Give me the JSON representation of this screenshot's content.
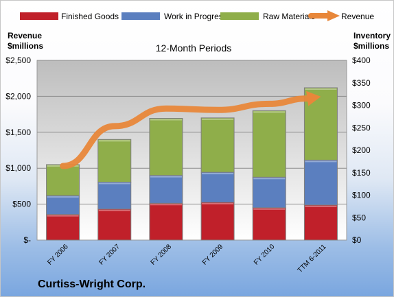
{
  "chart_data": {
    "type": "bar",
    "stacked": true,
    "subtitle": "12-Month Periods",
    "company": "Curtiss-Wright Corp.",
    "categories": [
      "FY 2006",
      "FY 2007",
      "FY 2008",
      "FY 2009",
      "FY 2010",
      "TTM 6-2011"
    ],
    "left_axis": {
      "label_line1": "Revenue",
      "label_line2": "$millions",
      "ylim": [
        0,
        2500
      ],
      "ticks": [
        0,
        500,
        1000,
        1500,
        2000,
        2500
      ],
      "tick_labels": [
        "$-",
        "$500",
        "$1,000",
        "$1,500",
        "$2,000",
        "$2,500"
      ]
    },
    "right_axis": {
      "label_line1": "Inventory",
      "label_line2": "$millions",
      "ylim": [
        0,
        400
      ],
      "ticks": [
        0,
        50,
        100,
        150,
        200,
        250,
        300,
        350,
        400
      ],
      "tick_labels": [
        "$0",
        "$50",
        "$100",
        "$150",
        "$200",
        "$250",
        "$300",
        "$350",
        "$400"
      ]
    },
    "series": [
      {
        "name": "Finished Goods",
        "type": "bar",
        "axis": "right",
        "color": "#c0202a",
        "values": [
          57,
          69,
          82,
          84,
          72,
          78
        ]
      },
      {
        "name": "Work in Progress",
        "type": "bar",
        "axis": "right",
        "color": "#5b7fbf",
        "values": [
          42,
          60,
          62,
          67,
          68,
          100
        ]
      },
      {
        "name": "Raw Materials",
        "type": "bar",
        "axis": "right",
        "color": "#8fae4a",
        "values": [
          69,
          95,
          127,
          121,
          148,
          161
        ]
      },
      {
        "name": "Revenue",
        "type": "line",
        "axis": "left",
        "color": "#e8873a",
        "values": [
          1030,
          1585,
          1830,
          1810,
          1895,
          1995
        ]
      }
    ],
    "grid": true,
    "legend": "top"
  }
}
